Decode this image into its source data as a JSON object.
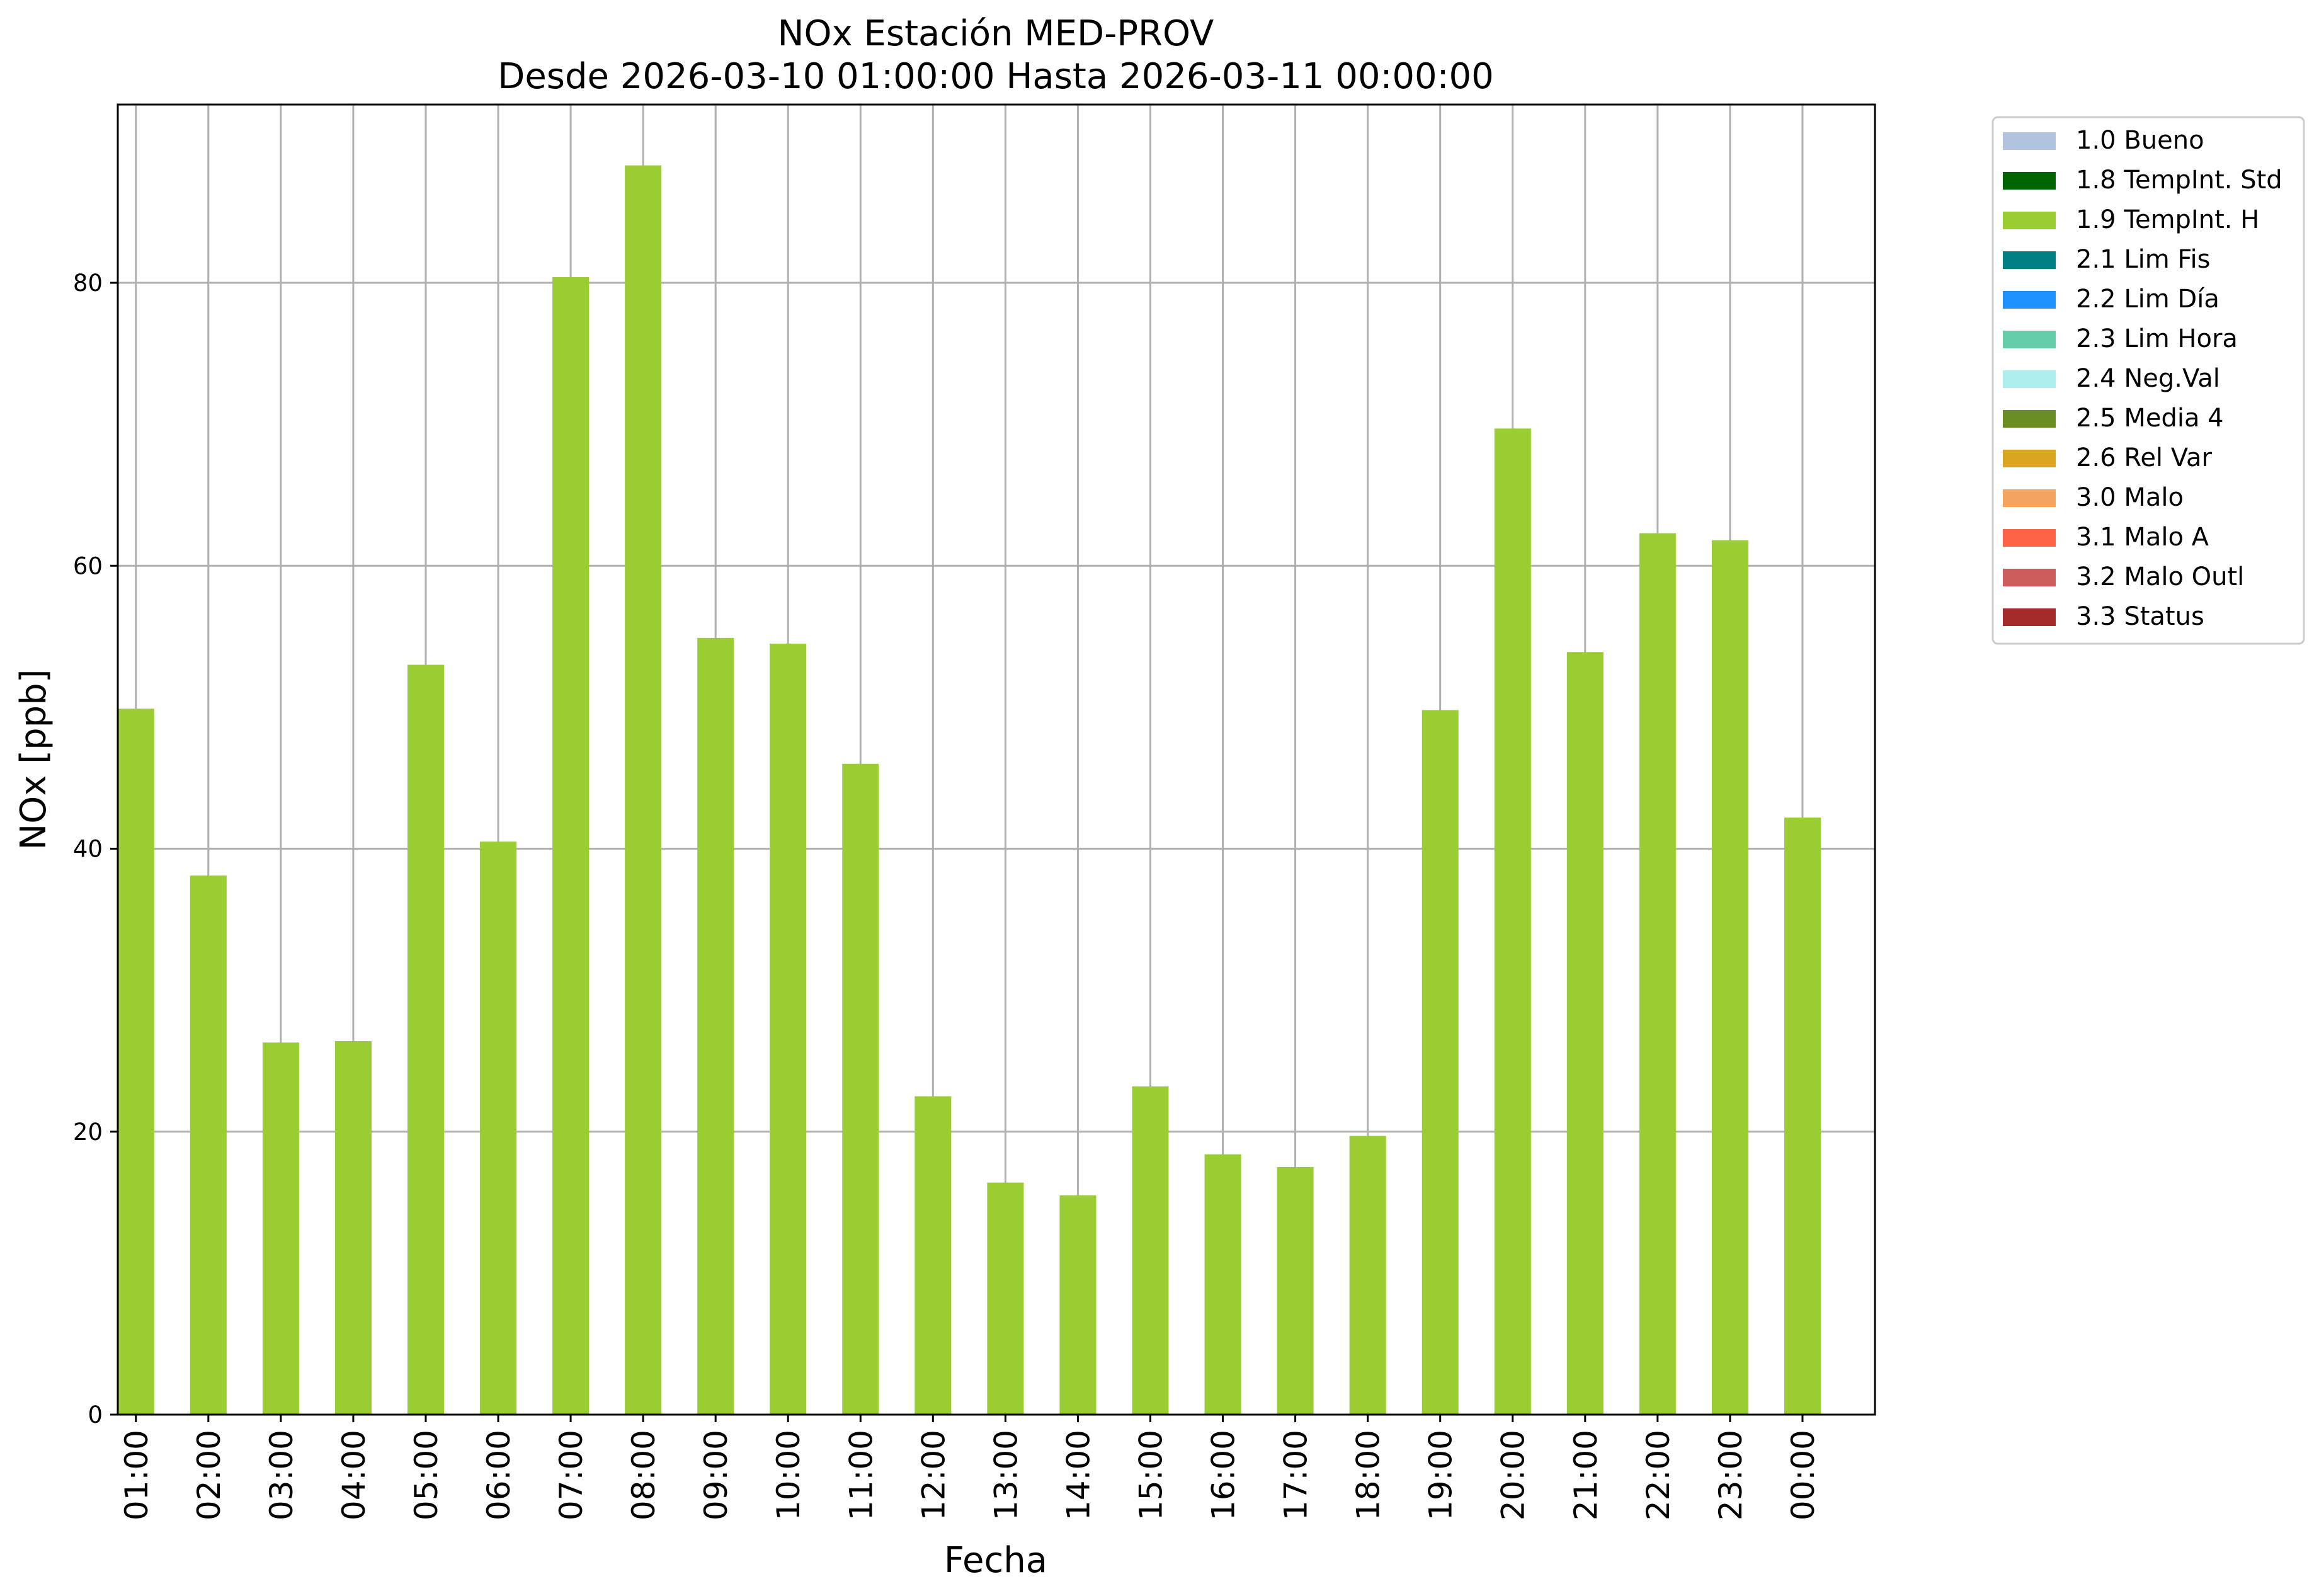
{
  "chart_data": {
    "type": "bar",
    "title": "NOx Estación MED-PROV",
    "subtitle": "Desde 2026-03-10 01:00:00 Hasta 2026-03-11 00:00:00",
    "xlabel": "Fecha",
    "ylabel": "NOx [ppb]",
    "ylim": [
      0,
      92.6
    ],
    "yticks": [
      0,
      20,
      40,
      60,
      80
    ],
    "grid": true,
    "legend_position": "outside-top-right",
    "categories": [
      "01:00",
      "02:00",
      "03:00",
      "04:00",
      "05:00",
      "06:00",
      "07:00",
      "08:00",
      "09:00",
      "10:00",
      "11:00",
      "12:00",
      "13:00",
      "14:00",
      "15:00",
      "16:00",
      "17:00",
      "18:00",
      "19:00",
      "20:00",
      "21:00",
      "22:00",
      "23:00",
      "00:00"
    ],
    "series": [
      {
        "name": "1.9 TempInt. H",
        "color": "#9acd32",
        "values": [
          49.9,
          38.1,
          26.3,
          26.4,
          53.0,
          40.5,
          80.4,
          88.3,
          54.9,
          54.5,
          46.0,
          22.5,
          16.4,
          15.5,
          23.2,
          18.4,
          17.5,
          19.7,
          49.8,
          69.7,
          53.9,
          62.3,
          61.8,
          42.2
        ]
      }
    ],
    "legend": [
      {
        "label": "1.0 Bueno",
        "color": "#b0c4de"
      },
      {
        "label": "1.8 TempInt. Std",
        "color": "#006400"
      },
      {
        "label": "1.9 TempInt. H",
        "color": "#9acd32"
      },
      {
        "label": "2.1 Lim Fis",
        "color": "#008080"
      },
      {
        "label": "2.2 Lim Día",
        "color": "#1e90ff"
      },
      {
        "label": "2.3 Lim Hora",
        "color": "#66cdaa"
      },
      {
        "label": "2.4 Neg.Val",
        "color": "#afeeee"
      },
      {
        "label": "2.5 Media 4",
        "color": "#6b8e23"
      },
      {
        "label": "2.6 Rel Var",
        "color": "#daa520"
      },
      {
        "label": "3.0 Malo",
        "color": "#f4a460"
      },
      {
        "label": "3.1 Malo A",
        "color": "#ff6347"
      },
      {
        "label": "3.2 Malo Outl",
        "color": "#cd5c5c"
      },
      {
        "label": "3.3 Status",
        "color": "#a52a2a"
      }
    ]
  }
}
